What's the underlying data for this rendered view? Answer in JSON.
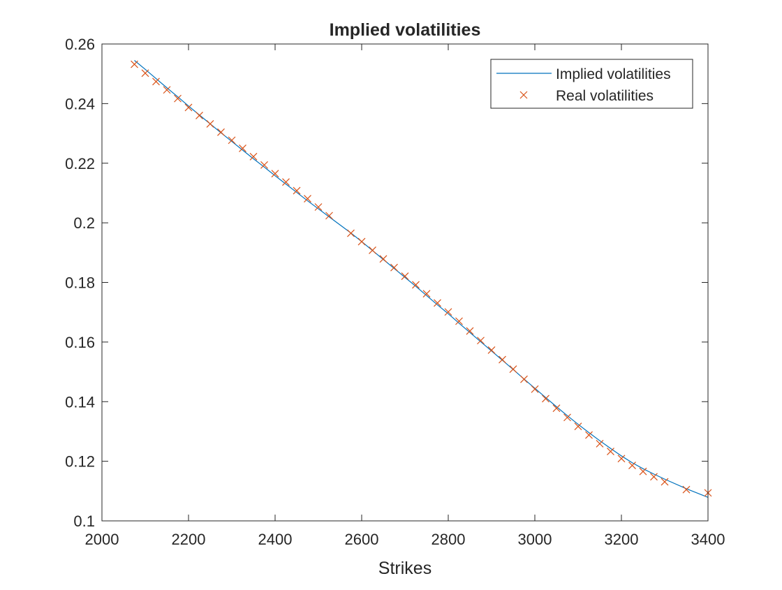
{
  "chart_data": {
    "type": "line",
    "title": "Implied volatilities",
    "xlabel": "Strikes",
    "ylabel": "",
    "xlim": [
      2000,
      3400
    ],
    "ylim": [
      0.1,
      0.26
    ],
    "x_ticks": [
      2000,
      2200,
      2400,
      2600,
      2800,
      3000,
      3200,
      3400
    ],
    "x_tick_labels": [
      "2000",
      "2200",
      "2400",
      "2600",
      "2800",
      "3000",
      "3200",
      "3400"
    ],
    "y_ticks": [
      0.1,
      0.12,
      0.14,
      0.16,
      0.18,
      0.2,
      0.22,
      0.24,
      0.26
    ],
    "y_tick_labels": [
      "0.1",
      "0.12",
      "0.14",
      "0.16",
      "0.18",
      "0.2",
      "0.22",
      "0.24",
      "0.26"
    ],
    "grid": false,
    "legend_position": "top-right",
    "series": [
      {
        "name": "Implied volatilities",
        "style": "line",
        "color": "#0072BD",
        "x": [
          2075,
          2100,
          2125,
          2150,
          2175,
          2200,
          2225,
          2250,
          2275,
          2300,
          2325,
          2350,
          2375,
          2400,
          2425,
          2450,
          2475,
          2500,
          2525,
          2575,
          2600,
          2625,
          2650,
          2675,
          2700,
          2725,
          2750,
          2775,
          2800,
          2825,
          2850,
          2875,
          2900,
          2925,
          2950,
          2975,
          3000,
          3025,
          3050,
          3075,
          3100,
          3125,
          3150,
          3175,
          3200,
          3225,
          3250,
          3275,
          3300,
          3350,
          3400
        ],
        "y": [
          0.2545,
          0.2515,
          0.2484,
          0.2453,
          0.2423,
          0.2392,
          0.2362,
          0.2332,
          0.2302,
          0.2273,
          0.2244,
          0.2215,
          0.2187,
          0.2158,
          0.213,
          0.2102,
          0.2074,
          0.2047,
          0.202,
          0.1966,
          0.1937,
          0.1907,
          0.1877,
          0.1847,
          0.1817,
          0.1787,
          0.1756,
          0.1725,
          0.1695,
          0.1663,
          0.1632,
          0.1601,
          0.157,
          0.1539,
          0.1508,
          0.1476,
          0.1445,
          0.1414,
          0.1383,
          0.1353,
          0.1324,
          0.1296,
          0.1269,
          0.1243,
          0.1218,
          0.1195,
          0.1175,
          0.1157,
          0.114,
          0.1108,
          0.1079
        ]
      },
      {
        "name": "Real volatilities",
        "style": "marker-x",
        "color": "#D95319",
        "x": [
          2075,
          2100,
          2125,
          2150,
          2175,
          2200,
          2225,
          2250,
          2275,
          2300,
          2325,
          2350,
          2375,
          2400,
          2425,
          2450,
          2475,
          2500,
          2525,
          2575,
          2600,
          2625,
          2650,
          2675,
          2700,
          2725,
          2750,
          2775,
          2800,
          2825,
          2850,
          2875,
          2900,
          2925,
          2950,
          2975,
          3000,
          3025,
          3050,
          3075,
          3100,
          3125,
          3150,
          3175,
          3200,
          3225,
          3250,
          3275,
          3300,
          3350,
          3400
        ],
        "y": [
          0.2532,
          0.2502,
          0.2474,
          0.2446,
          0.2417,
          0.2387,
          0.236,
          0.2332,
          0.2304,
          0.2277,
          0.225,
          0.2222,
          0.2194,
          0.2165,
          0.2137,
          0.2108,
          0.2081,
          0.2053,
          0.2024,
          0.1965,
          0.1937,
          0.1908,
          0.1879,
          0.185,
          0.1821,
          0.1792,
          0.1762,
          0.1731,
          0.1701,
          0.167,
          0.1637,
          0.1605,
          0.1573,
          0.1541,
          0.1509,
          0.1475,
          0.1442,
          0.141,
          0.1378,
          0.1347,
          0.1317,
          0.1288,
          0.1259,
          0.1233,
          0.1209,
          0.1186,
          0.1166,
          0.1148,
          0.1131,
          0.1105,
          0.1094
        ]
      }
    ]
  }
}
